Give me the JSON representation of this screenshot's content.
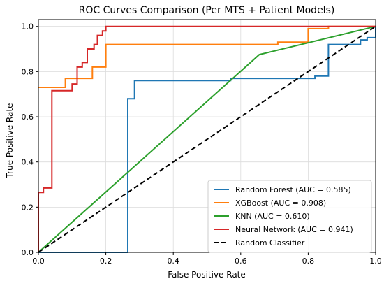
{
  "chart_data": {
    "type": "line",
    "title": "ROC Curves Comparison (Per MTS + Patient Models)",
    "xlabel": "False Positive Rate",
    "ylabel": "True Positive Rate",
    "xlim": [
      0,
      1
    ],
    "ylim": [
      0,
      1.03
    ],
    "xticks": [
      "0.0",
      "0.2",
      "0.4",
      "0.6",
      "0.8",
      "1.0"
    ],
    "yticks": [
      "0.0",
      "0.2",
      "0.4",
      "0.6",
      "0.8",
      "1.0"
    ],
    "grid": true,
    "legend_position": "lower-right",
    "series": [
      {
        "name": "Random Forest (AUC = 0.585)",
        "color": "#1f77b4",
        "dash": "solid",
        "x": [
          0.0,
          0.265,
          0.265,
          0.285,
          0.285,
          0.57,
          0.57,
          0.82,
          0.82,
          0.86,
          0.86,
          0.955,
          0.955,
          0.975,
          0.975,
          1.0,
          1.0
        ],
        "y": [
          0.0,
          0.0,
          0.68,
          0.68,
          0.76,
          0.76,
          0.77,
          0.77,
          0.78,
          0.78,
          0.92,
          0.92,
          0.94,
          0.94,
          0.95,
          0.95,
          1.0
        ]
      },
      {
        "name": "XGBoost (AUC = 0.908)",
        "color": "#ff7f0e",
        "dash": "solid",
        "x": [
          0.0,
          0.08,
          0.08,
          0.11,
          0.11,
          0.16,
          0.16,
          0.2,
          0.2,
          0.71,
          0.71,
          0.8,
          0.8,
          0.86,
          0.86,
          1.0
        ],
        "y": [
          0.73,
          0.73,
          0.77,
          0.77,
          0.77,
          0.77,
          0.82,
          0.82,
          0.92,
          0.92,
          0.93,
          0.93,
          0.99,
          0.99,
          1.0,
          1.0
        ]
      },
      {
        "name": "KNN (AUC = 0.610)",
        "color": "#2ca02c",
        "dash": "solid",
        "x": [
          0.0,
          0.655,
          1.0
        ],
        "y": [
          0.0,
          0.875,
          1.0
        ]
      },
      {
        "name": "Neural Network (AUC = 0.941)",
        "color": "#d62728",
        "dash": "solid",
        "x": [
          0.0,
          0.0,
          0.015,
          0.015,
          0.04,
          0.04,
          0.1,
          0.1,
          0.115,
          0.115,
          0.13,
          0.13,
          0.145,
          0.145,
          0.165,
          0.165,
          0.175,
          0.175,
          0.19,
          0.19,
          0.2,
          0.2,
          1.0
        ],
        "y": [
          0.0,
          0.265,
          0.265,
          0.285,
          0.285,
          0.715,
          0.715,
          0.745,
          0.745,
          0.82,
          0.82,
          0.84,
          0.84,
          0.9,
          0.9,
          0.92,
          0.92,
          0.96,
          0.96,
          0.98,
          0.98,
          1.0,
          1.0
        ]
      },
      {
        "name": "Random Classifier",
        "color": "#000000",
        "dash": "dashed",
        "x": [
          0,
          1
        ],
        "y": [
          0,
          1
        ]
      }
    ]
  }
}
